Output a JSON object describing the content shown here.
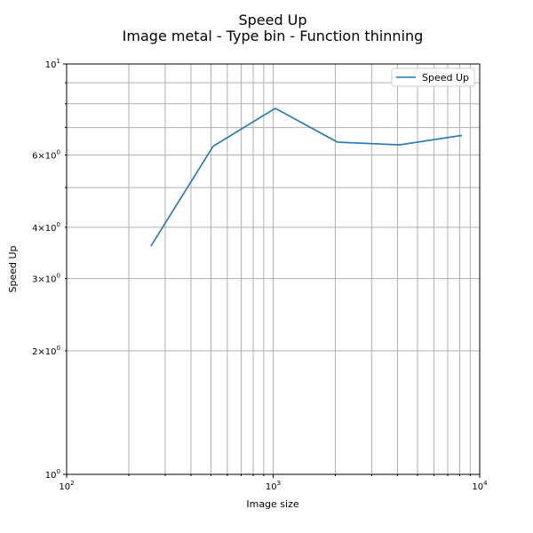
{
  "chart_data": {
    "type": "line",
    "title": "Speed Up",
    "subtitle": "Image metal - Type bin - Function thinning",
    "xlabel": "Image size",
    "ylabel": "Speed Up",
    "xscale": "log",
    "yscale": "log",
    "xlim": [
      100,
      10000
    ],
    "ylim": [
      1,
      10
    ],
    "grid": "both (major and minor)",
    "legend_placement": "top-right",
    "x_ticks_major": [
      {
        "value": 100,
        "base": "10",
        "exp": "2"
      },
      {
        "value": 1000,
        "base": "10",
        "exp": "3"
      },
      {
        "value": 10000,
        "base": "10",
        "exp": "4"
      }
    ],
    "y_ticks_major": [
      {
        "value": 1,
        "base": "10",
        "exp": "0"
      },
      {
        "value": 10,
        "base": "10",
        "exp": "1"
      }
    ],
    "y_ticks_minor_labeled": [
      {
        "value": 2,
        "mant": "2",
        "base": "10",
        "exp": "0"
      },
      {
        "value": 3,
        "mant": "3",
        "base": "10",
        "exp": "0"
      },
      {
        "value": 4,
        "mant": "4",
        "base": "10",
        "exp": "0"
      },
      {
        "value": 6,
        "mant": "6",
        "base": "10",
        "exp": "0"
      }
    ],
    "x_ticks_minor": [
      200,
      300,
      400,
      500,
      600,
      700,
      800,
      900,
      2000,
      3000,
      4000,
      5000,
      6000,
      7000,
      8000,
      9000
    ],
    "y_ticks_minor": [
      5,
      7,
      8,
      9
    ],
    "series": [
      {
        "name": "Speed Up",
        "color": "#1f77b4",
        "x": [
          256,
          512,
          1024,
          2048,
          4096,
          8192
        ],
        "y": [
          3.6,
          6.3,
          7.8,
          6.45,
          6.35,
          6.7
        ]
      }
    ]
  }
}
